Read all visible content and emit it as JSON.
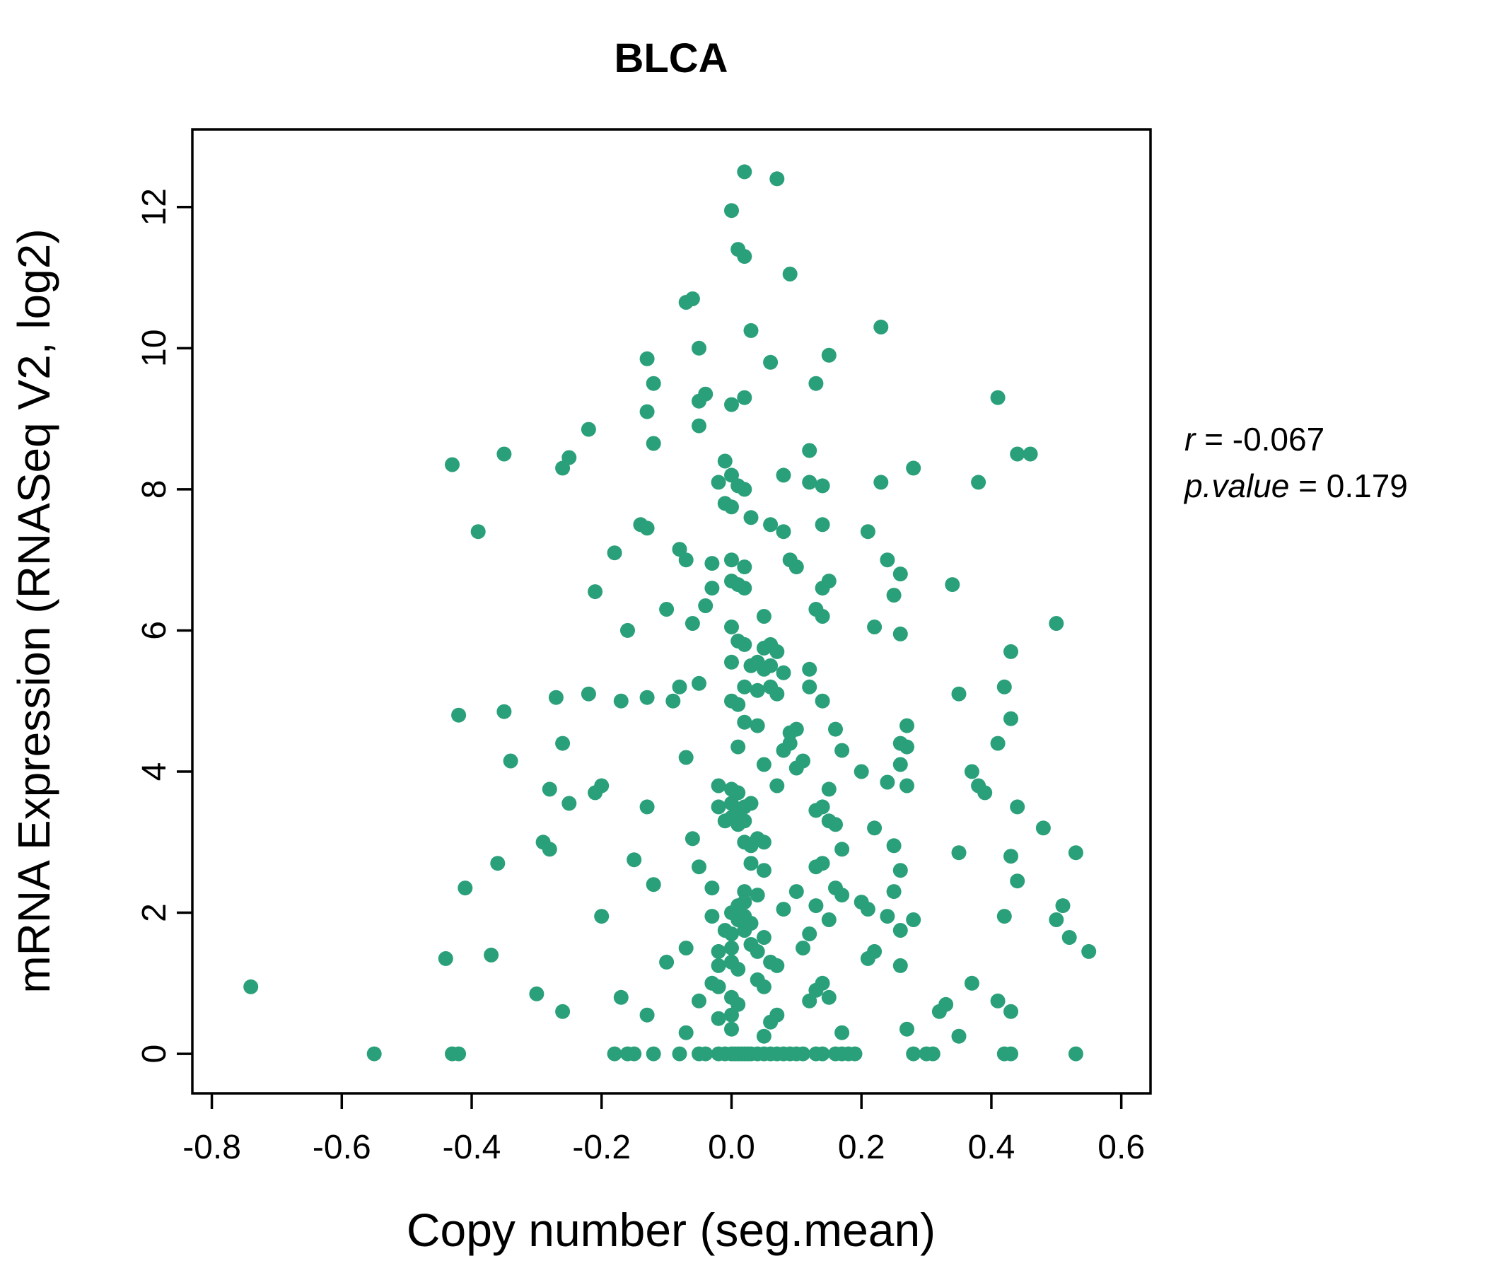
{
  "title": "BLCA",
  "accent_color": "#2aa07a",
  "annotation": {
    "r_label": "r",
    "r_value": " = -0.067",
    "p_label": "p.value",
    "p_value": " = 0.179"
  },
  "chart_data": {
    "type": "scatter",
    "title": "BLCA",
    "xlabel": "Copy number (seg.mean)",
    "ylabel": "mRNA Expression (RNASeq V2, log2)",
    "xlim": [
      -0.83,
      0.645
    ],
    "ylim": [
      -0.56,
      13.1
    ],
    "x_ticks": [
      -0.8,
      -0.6,
      -0.4,
      -0.2,
      0.0,
      0.2,
      0.4,
      0.6
    ],
    "y_ticks": [
      0,
      2,
      4,
      6,
      8,
      10,
      12
    ],
    "grid": false,
    "legend": "none",
    "point_color": "#2aa07a",
    "stats": {
      "r": -0.067,
      "p_value": 0.179
    },
    "points": [
      [
        0.02,
        12.5
      ],
      [
        0.07,
        12.4
      ],
      [
        0.0,
        11.95
      ],
      [
        0.01,
        11.4
      ],
      [
        0.02,
        11.3
      ],
      [
        0.09,
        11.05
      ],
      [
        -0.07,
        10.65
      ],
      [
        -0.06,
        10.7
      ],
      [
        0.03,
        10.25
      ],
      [
        0.23,
        10.3
      ],
      [
        -0.05,
        10.0
      ],
      [
        -0.13,
        9.85
      ],
      [
        0.06,
        9.8
      ],
      [
        0.15,
        9.9
      ],
      [
        -0.12,
        9.5
      ],
      [
        0.13,
        9.5
      ],
      [
        -0.04,
        9.35
      ],
      [
        -0.05,
        9.25
      ],
      [
        0.0,
        9.2
      ],
      [
        0.02,
        9.3
      ],
      [
        0.41,
        9.3
      ],
      [
        -0.13,
        9.1
      ],
      [
        -0.05,
        8.9
      ],
      [
        -0.22,
        8.85
      ],
      [
        -0.12,
        8.65
      ],
      [
        0.12,
        8.55
      ],
      [
        -0.43,
        8.35
      ],
      [
        -0.35,
        8.5
      ],
      [
        -0.26,
        8.3
      ],
      [
        -0.25,
        8.45
      ],
      [
        0.44,
        8.5
      ],
      [
        0.46,
        8.5
      ],
      [
        -0.01,
        8.4
      ],
      [
        0.0,
        8.2
      ],
      [
        -0.02,
        8.1
      ],
      [
        0.01,
        8.05
      ],
      [
        0.02,
        8.0
      ],
      [
        0.08,
        8.2
      ],
      [
        0.12,
        8.1
      ],
      [
        0.14,
        8.05
      ],
      [
        0.23,
        8.1
      ],
      [
        0.28,
        8.3
      ],
      [
        0.38,
        8.1
      ],
      [
        -0.01,
        7.8
      ],
      [
        0.0,
        7.75
      ],
      [
        0.03,
        7.6
      ],
      [
        -0.14,
        7.5
      ],
      [
        -0.13,
        7.45
      ],
      [
        -0.39,
        7.4
      ],
      [
        0.06,
        7.5
      ],
      [
        0.08,
        7.4
      ],
      [
        0.14,
        7.5
      ],
      [
        0.21,
        7.4
      ],
      [
        -0.18,
        7.1
      ],
      [
        -0.08,
        7.15
      ],
      [
        -0.07,
        7.0
      ],
      [
        -0.03,
        6.95
      ],
      [
        0.0,
        7.0
      ],
      [
        0.02,
        6.9
      ],
      [
        0.09,
        7.0
      ],
      [
        0.1,
        6.9
      ],
      [
        0.24,
        7.0
      ],
      [
        0.26,
        6.8
      ],
      [
        0.34,
        6.65
      ],
      [
        -0.21,
        6.55
      ],
      [
        -0.03,
        6.6
      ],
      [
        0.0,
        6.7
      ],
      [
        0.01,
        6.65
      ],
      [
        0.02,
        6.6
      ],
      [
        0.14,
        6.6
      ],
      [
        0.15,
        6.7
      ],
      [
        0.25,
        6.5
      ],
      [
        -0.1,
        6.3
      ],
      [
        -0.04,
        6.35
      ],
      [
        0.05,
        6.2
      ],
      [
        0.13,
        6.3
      ],
      [
        0.14,
        6.2
      ],
      [
        -0.16,
        6.0
      ],
      [
        -0.06,
        6.1
      ],
      [
        0.0,
        6.05
      ],
      [
        0.22,
        6.05
      ],
      [
        0.26,
        5.95
      ],
      [
        0.5,
        6.1
      ],
      [
        0.01,
        5.85
      ],
      [
        0.02,
        5.8
      ],
      [
        0.05,
        5.75
      ],
      [
        0.06,
        5.8
      ],
      [
        0.07,
        5.7
      ],
      [
        0.43,
        5.7
      ],
      [
        0.0,
        5.55
      ],
      [
        0.03,
        5.5
      ],
      [
        0.04,
        5.55
      ],
      [
        0.05,
        5.45
      ],
      [
        0.06,
        5.5
      ],
      [
        0.08,
        5.4
      ],
      [
        0.12,
        5.45
      ],
      [
        -0.08,
        5.2
      ],
      [
        -0.05,
        5.25
      ],
      [
        0.02,
        5.2
      ],
      [
        0.04,
        5.15
      ],
      [
        0.06,
        5.2
      ],
      [
        0.07,
        5.1
      ],
      [
        0.12,
        5.2
      ],
      [
        0.35,
        5.1
      ],
      [
        0.42,
        5.2
      ],
      [
        -0.27,
        5.05
      ],
      [
        -0.22,
        5.1
      ],
      [
        -0.17,
        5.0
      ],
      [
        -0.13,
        5.05
      ],
      [
        -0.09,
        5.0
      ],
      [
        0.0,
        5.0
      ],
      [
        0.01,
        4.95
      ],
      [
        0.14,
        5.0
      ],
      [
        -0.42,
        4.8
      ],
      [
        -0.35,
        4.85
      ],
      [
        0.02,
        4.7
      ],
      [
        0.04,
        4.65
      ],
      [
        0.09,
        4.55
      ],
      [
        0.1,
        4.6
      ],
      [
        0.16,
        4.6
      ],
      [
        0.27,
        4.65
      ],
      [
        0.43,
        4.75
      ],
      [
        -0.26,
        4.4
      ],
      [
        0.01,
        4.35
      ],
      [
        0.08,
        4.3
      ],
      [
        0.09,
        4.4
      ],
      [
        0.17,
        4.3
      ],
      [
        0.26,
        4.4
      ],
      [
        0.27,
        4.35
      ],
      [
        0.41,
        4.4
      ],
      [
        -0.34,
        4.15
      ],
      [
        -0.07,
        4.2
      ],
      [
        0.05,
        4.1
      ],
      [
        0.1,
        4.05
      ],
      [
        0.11,
        4.15
      ],
      [
        0.2,
        4.0
      ],
      [
        0.26,
        4.1
      ],
      [
        0.37,
        4.0
      ],
      [
        -0.28,
        3.75
      ],
      [
        -0.21,
        3.7
      ],
      [
        -0.2,
        3.8
      ],
      [
        -0.02,
        3.8
      ],
      [
        0.0,
        3.75
      ],
      [
        0.01,
        3.7
      ],
      [
        0.07,
        3.8
      ],
      [
        0.15,
        3.75
      ],
      [
        0.24,
        3.85
      ],
      [
        0.27,
        3.8
      ],
      [
        0.38,
        3.8
      ],
      [
        0.39,
        3.7
      ],
      [
        -0.25,
        3.55
      ],
      [
        -0.13,
        3.5
      ],
      [
        -0.02,
        3.5
      ],
      [
        0.0,
        3.55
      ],
      [
        0.01,
        3.45
      ],
      [
        0.02,
        3.5
      ],
      [
        0.03,
        3.55
      ],
      [
        0.13,
        3.45
      ],
      [
        0.14,
        3.5
      ],
      [
        0.44,
        3.5
      ],
      [
        -0.01,
        3.3
      ],
      [
        0.0,
        3.35
      ],
      [
        0.01,
        3.25
      ],
      [
        0.02,
        3.3
      ],
      [
        0.15,
        3.3
      ],
      [
        0.16,
        3.25
      ],
      [
        0.22,
        3.2
      ],
      [
        0.48,
        3.2
      ],
      [
        -0.29,
        3.0
      ],
      [
        -0.28,
        2.9
      ],
      [
        -0.06,
        3.05
      ],
      [
        0.02,
        3.0
      ],
      [
        0.03,
        2.95
      ],
      [
        0.04,
        3.05
      ],
      [
        0.05,
        3.0
      ],
      [
        0.17,
        2.9
      ],
      [
        0.25,
        2.95
      ],
      [
        0.35,
        2.85
      ],
      [
        0.43,
        2.8
      ],
      [
        0.53,
        2.85
      ],
      [
        -0.36,
        2.7
      ],
      [
        -0.15,
        2.75
      ],
      [
        -0.05,
        2.65
      ],
      [
        0.03,
        2.7
      ],
      [
        0.05,
        2.6
      ],
      [
        0.13,
        2.65
      ],
      [
        0.14,
        2.7
      ],
      [
        0.26,
        2.6
      ],
      [
        0.44,
        2.45
      ],
      [
        -0.41,
        2.35
      ],
      [
        -0.12,
        2.4
      ],
      [
        -0.03,
        2.35
      ],
      [
        0.02,
        2.3
      ],
      [
        0.04,
        2.25
      ],
      [
        0.1,
        2.3
      ],
      [
        0.16,
        2.35
      ],
      [
        0.17,
        2.25
      ],
      [
        0.25,
        2.3
      ],
      [
        0.01,
        2.1
      ],
      [
        0.02,
        2.15
      ],
      [
        0.08,
        2.05
      ],
      [
        0.13,
        2.1
      ],
      [
        0.2,
        2.15
      ],
      [
        0.21,
        2.05
      ],
      [
        0.51,
        2.1
      ],
      [
        -0.2,
        1.95
      ],
      [
        -0.03,
        1.95
      ],
      [
        0.0,
        2.0
      ],
      [
        0.01,
        1.9
      ],
      [
        0.02,
        1.95
      ],
      [
        0.03,
        1.85
      ],
      [
        0.15,
        1.9
      ],
      [
        0.24,
        1.95
      ],
      [
        0.28,
        1.9
      ],
      [
        0.42,
        1.95
      ],
      [
        0.5,
        1.9
      ],
      [
        -0.01,
        1.75
      ],
      [
        0.0,
        1.7
      ],
      [
        0.02,
        1.75
      ],
      [
        0.05,
        1.65
      ],
      [
        0.12,
        1.7
      ],
      [
        0.26,
        1.75
      ],
      [
        0.52,
        1.65
      ],
      [
        -0.07,
        1.5
      ],
      [
        -0.02,
        1.45
      ],
      [
        0.0,
        1.5
      ],
      [
        0.03,
        1.55
      ],
      [
        0.04,
        1.45
      ],
      [
        0.11,
        1.5
      ],
      [
        0.22,
        1.45
      ],
      [
        0.55,
        1.45
      ],
      [
        -0.44,
        1.35
      ],
      [
        -0.37,
        1.4
      ],
      [
        -0.1,
        1.3
      ],
      [
        -0.02,
        1.25
      ],
      [
        0.0,
        1.3
      ],
      [
        0.01,
        1.2
      ],
      [
        0.06,
        1.3
      ],
      [
        0.07,
        1.25
      ],
      [
        0.21,
        1.35
      ],
      [
        0.26,
        1.25
      ],
      [
        -0.74,
        0.95
      ],
      [
        -0.03,
        1.0
      ],
      [
        -0.02,
        0.95
      ],
      [
        0.04,
        1.05
      ],
      [
        0.05,
        0.95
      ],
      [
        0.13,
        0.9
      ],
      [
        0.14,
        1.0
      ],
      [
        0.37,
        1.0
      ],
      [
        -0.3,
        0.85
      ],
      [
        -0.17,
        0.8
      ],
      [
        -0.05,
        0.75
      ],
      [
        0.0,
        0.8
      ],
      [
        0.01,
        0.7
      ],
      [
        0.12,
        0.75
      ],
      [
        0.15,
        0.8
      ],
      [
        0.33,
        0.7
      ],
      [
        0.41,
        0.75
      ],
      [
        -0.26,
        0.6
      ],
      [
        -0.13,
        0.55
      ],
      [
        -0.02,
        0.5
      ],
      [
        0.0,
        0.55
      ],
      [
        0.06,
        0.45
      ],
      [
        0.07,
        0.55
      ],
      [
        0.32,
        0.6
      ],
      [
        0.43,
        0.6
      ],
      [
        -0.07,
        0.3
      ],
      [
        0.0,
        0.35
      ],
      [
        0.05,
        0.25
      ],
      [
        0.17,
        0.3
      ],
      [
        0.27,
        0.35
      ],
      [
        0.35,
        0.25
      ],
      [
        -0.55,
        0
      ],
      [
        -0.43,
        0
      ],
      [
        -0.42,
        0
      ],
      [
        -0.18,
        0
      ],
      [
        -0.16,
        0
      ],
      [
        -0.15,
        0
      ],
      [
        -0.12,
        0
      ],
      [
        -0.08,
        0
      ],
      [
        -0.05,
        0
      ],
      [
        -0.04,
        0
      ],
      [
        -0.02,
        0
      ],
      [
        -0.01,
        0
      ],
      [
        0.0,
        0
      ],
      [
        0.005,
        0
      ],
      [
        0.01,
        0
      ],
      [
        0.015,
        0
      ],
      [
        0.02,
        0
      ],
      [
        0.025,
        0
      ],
      [
        0.03,
        0
      ],
      [
        0.04,
        0
      ],
      [
        0.05,
        0
      ],
      [
        0.06,
        0
      ],
      [
        0.07,
        0
      ],
      [
        0.08,
        0
      ],
      [
        0.09,
        0
      ],
      [
        0.1,
        0
      ],
      [
        0.11,
        0
      ],
      [
        0.13,
        0
      ],
      [
        0.14,
        0
      ],
      [
        0.16,
        0
      ],
      [
        0.17,
        0
      ],
      [
        0.18,
        0
      ],
      [
        0.19,
        0
      ],
      [
        0.28,
        0
      ],
      [
        0.3,
        0
      ],
      [
        0.31,
        0
      ],
      [
        0.42,
        0
      ],
      [
        0.43,
        0
      ],
      [
        0.53,
        0
      ]
    ]
  }
}
